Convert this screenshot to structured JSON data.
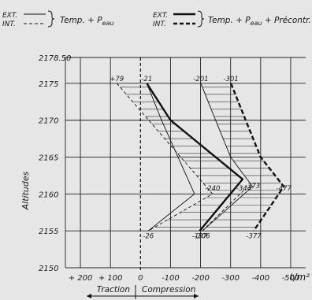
{
  "chart_data": {
    "type": "line",
    "ylabel": "Altitudes",
    "xunit": "t/m²",
    "ylim": [
      2150,
      2178.5
    ],
    "xlim": [
      250,
      -550
    ],
    "yticks": [
      {
        "value": 2150,
        "label": "2150"
      },
      {
        "value": 2155,
        "label": "2155"
      },
      {
        "value": 2160,
        "label": "2160"
      },
      {
        "value": 2165,
        "label": "2165"
      },
      {
        "value": 2170,
        "label": "2170"
      },
      {
        "value": 2175,
        "label": "2175"
      },
      {
        "value": 2178.5,
        "label": "2178.50"
      }
    ],
    "xticks": [
      {
        "value": 200,
        "label": "+ 200"
      },
      {
        "value": 100,
        "label": "+ 100"
      },
      {
        "value": 0,
        "label": "0"
      },
      {
        "value": -100,
        "label": "-100"
      },
      {
        "value": -200,
        "label": "-200"
      },
      {
        "value": -300,
        "label": "-300"
      },
      {
        "value": -400,
        "label": "-400"
      },
      {
        "value": -500,
        "label": "-500"
      }
    ],
    "grid": true,
    "zones": {
      "traction": "Traction",
      "compression": "Compression"
    },
    "legend": [
      {
        "group": "Temp. + Peau",
        "ext_label": "EXT.",
        "int_label": "INT.",
        "text_a": "Temp. + P",
        "sub_a": "eau",
        "text_b": ""
      },
      {
        "group": "Temp. + Peau + Précontr.",
        "ext_label": "EXT.",
        "int_label": "INT.",
        "text_a": "Temp. + P",
        "sub_a": "eau",
        "text_b": " + Précontr."
      }
    ],
    "series": [
      {
        "key": "ext1",
        "style": "thin-solid",
        "points": [
          [
            -21,
            2175
          ],
          [
            -70,
            2170
          ],
          [
            -180,
            2160
          ],
          [
            -26,
            2155
          ]
        ]
      },
      {
        "key": "int1",
        "style": "thin-dashed",
        "points": [
          [
            79,
            2175
          ],
          [
            -240,
            2160
          ],
          [
            -26,
            2155
          ]
        ]
      },
      {
        "key": "ext2",
        "style": "thick-solid",
        "points": [
          [
            -21,
            2175
          ],
          [
            -100,
            2170
          ],
          [
            -340,
            2162
          ],
          [
            -197,
            2155
          ]
        ]
      },
      {
        "key": "int2",
        "style": "thick-dashed",
        "points": [
          [
            -301,
            2175
          ],
          [
            -350,
            2170
          ],
          [
            -400,
            2165
          ],
          [
            -477,
            2161
          ],
          [
            -377,
            2155
          ]
        ]
      },
      {
        "key": "ext2b",
        "style": "thin-solid",
        "points": [
          [
            -201,
            2175
          ],
          [
            -250,
            2170
          ],
          [
            -300,
            2165
          ],
          [
            -373,
            2161
          ],
          [
            -206,
            2155
          ]
        ]
      },
      {
        "key": "int2b",
        "style": "thin-dashed",
        "points": [
          [
            -344,
            2160.5
          ],
          [
            -206,
            2155
          ]
        ]
      }
    ],
    "hatch_regions": [
      {
        "left": "int1",
        "right": "ext2",
        "from": 2155,
        "to": 2175
      },
      {
        "left": "ext2b",
        "right": "int2",
        "from": 2155,
        "to": 2175
      }
    ],
    "annotations": [
      {
        "text": "+79",
        "x": 79,
        "y": 2175.6
      },
      {
        "text": "-21",
        "x": -21,
        "y": 2175.6
      },
      {
        "text": "-201",
        "x": -201,
        "y": 2175.6
      },
      {
        "text": "-301",
        "x": -301,
        "y": 2175.6
      },
      {
        "text": "-240",
        "x": -240,
        "y": 2160.8
      },
      {
        "text": "-344",
        "x": -344,
        "y": 2160.8
      },
      {
        "text": "-373",
        "x": -373,
        "y": 2161.1
      },
      {
        "text": "-477",
        "x": -477,
        "y": 2160.8
      },
      {
        "text": "-26",
        "x": -26,
        "y": 2154.3
      },
      {
        "text": "-197",
        "x": -197,
        "y": 2154.3
      },
      {
        "text": "-206",
        "x": -206,
        "y": 2154.3
      },
      {
        "text": "-377",
        "x": -377,
        "y": 2154.3
      }
    ]
  }
}
